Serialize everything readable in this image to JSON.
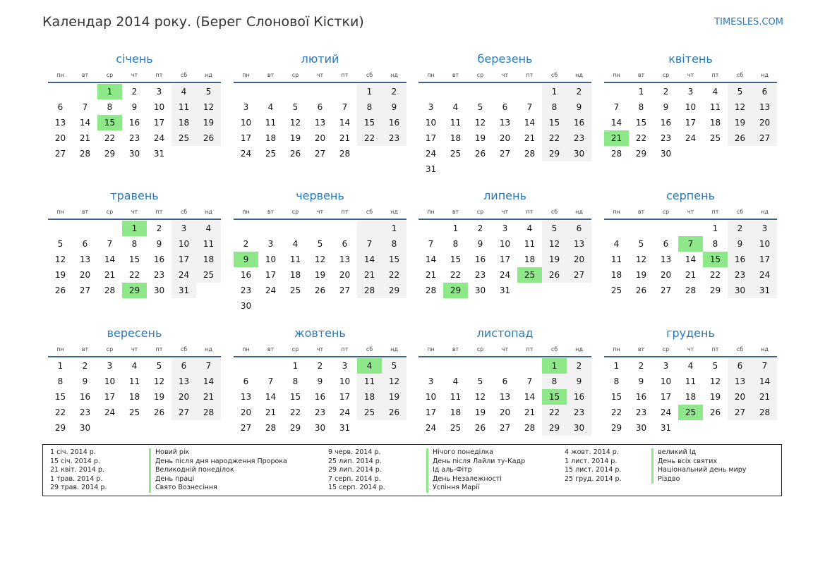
{
  "header": {
    "title": "Календар 2014 року. (Берег Слонової Кістки)",
    "site": "TIMESLES.COM"
  },
  "weekdays": [
    "пн",
    "вт",
    "ср",
    "чт",
    "пт",
    "сб",
    "нд"
  ],
  "months": [
    {
      "name": "січень",
      "offset": 2,
      "days": 31,
      "holidays": [
        1,
        15
      ]
    },
    {
      "name": "лютий",
      "offset": 5,
      "days": 28,
      "holidays": []
    },
    {
      "name": "березень",
      "offset": 5,
      "days": 31,
      "holidays": []
    },
    {
      "name": "квітень",
      "offset": 1,
      "days": 30,
      "holidays": [
        21
      ]
    },
    {
      "name": "травень",
      "offset": 3,
      "days": 31,
      "holidays": [
        1,
        29
      ]
    },
    {
      "name": "червень",
      "offset": 6,
      "days": 30,
      "holidays": [
        9
      ]
    },
    {
      "name": "липень",
      "offset": 1,
      "days": 31,
      "holidays": [
        25,
        29
      ]
    },
    {
      "name": "серпень",
      "offset": 4,
      "days": 31,
      "holidays": [
        7,
        15
      ]
    },
    {
      "name": "вересень",
      "offset": 0,
      "days": 30,
      "holidays": []
    },
    {
      "name": "жовтень",
      "offset": 2,
      "days": 31,
      "holidays": [
        4
      ]
    },
    {
      "name": "листопад",
      "offset": 5,
      "days": 30,
      "holidays": [
        1,
        15
      ]
    },
    {
      "name": "грудень",
      "offset": 0,
      "days": 31,
      "holidays": [
        25
      ]
    }
  ],
  "legend": [
    [
      {
        "date": "1 січ. 2014 р.",
        "name": "Новий рік"
      },
      {
        "date": "15 січ. 2014 р.",
        "name": "День після дня народження Пророка"
      },
      {
        "date": "21 квіт. 2014 р.",
        "name": "Великодній понеділок"
      },
      {
        "date": "1 трав. 2014 р.",
        "name": "День праці"
      },
      {
        "date": "29 трав. 2014 р.",
        "name": "Свято Вознесіння"
      }
    ],
    [
      {
        "date": "9 черв. 2014 р.",
        "name": "Нічого понеділка"
      },
      {
        "date": "25 лип. 2014 р.",
        "name": "День після Лайли ту-Кадр"
      },
      {
        "date": "29 лип. 2014 р.",
        "name": "Ід аль-Фітр"
      },
      {
        "date": "7 серп. 2014 р.",
        "name": "День Незалежності"
      },
      {
        "date": "15 серп. 2014 р.",
        "name": "Успіння Марії"
      }
    ],
    [
      {
        "date": "4 жовт. 2014 р.",
        "name": "великий Ід"
      },
      {
        "date": "1 лист. 2014 р.",
        "name": "День всіх святих"
      },
      {
        "date": "15 лист. 2014 р.",
        "name": "Національний день миру"
      },
      {
        "date": "25 груд. 2014 р.",
        "name": "Різдво"
      }
    ]
  ]
}
